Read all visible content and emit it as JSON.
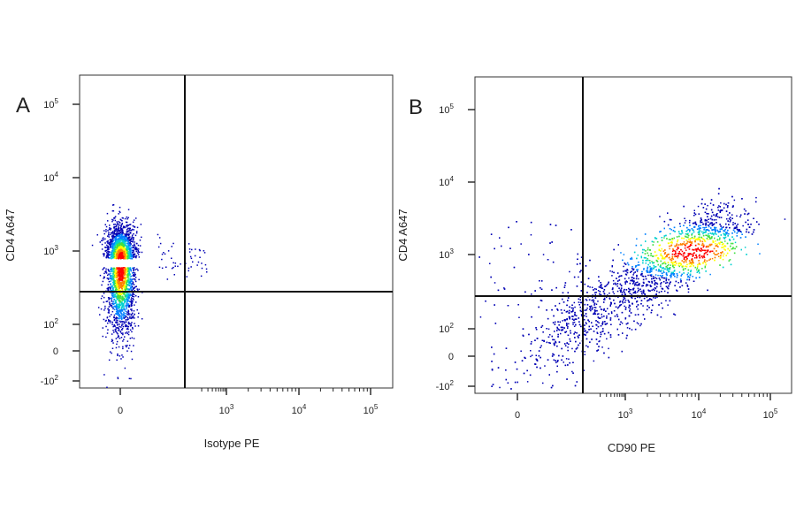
{
  "chart_data": [
    {
      "type": "scatter",
      "panel_label": "A",
      "xlabel": "Isotype PE",
      "ylabel": "CD4 A647",
      "x_scale": "biexponential",
      "y_scale": "biexponential",
      "xlim": [
        -200,
        200000
      ],
      "ylim": [
        -200,
        300000
      ],
      "x_ticks": [
        {
          "value": 0,
          "label": "0"
        },
        {
          "value": 1000,
          "label": "10",
          "exp": "3"
        },
        {
          "value": 10000,
          "label": "10",
          "exp": "4"
        },
        {
          "value": 100000,
          "label": "10",
          "exp": "5"
        }
      ],
      "y_ticks": [
        {
          "value": -100,
          "label": "-10",
          "exp": "2"
        },
        {
          "value": 0,
          "label": "0"
        },
        {
          "value": 100,
          "label": "10",
          "exp": "2"
        },
        {
          "value": 1000,
          "label": "10",
          "exp": "3"
        },
        {
          "value": 10000,
          "label": "10",
          "exp": "4"
        },
        {
          "value": 100000,
          "label": "10",
          "exp": "5"
        }
      ],
      "quadrant_gate": {
        "x": 300,
        "y": 250
      },
      "populations": [
        {
          "x": 0,
          "y": 800,
          "spread": "dense",
          "density": "high"
        }
      ],
      "colormap": [
        "#0000b4",
        "#0080ff",
        "#00d0d0",
        "#40e040",
        "#ffff00",
        "#ff8000",
        "#ff0000"
      ]
    },
    {
      "type": "scatter",
      "panel_label": "B",
      "xlabel": "CD90 PE",
      "ylabel": "CD4 A647",
      "x_scale": "biexponential",
      "y_scale": "biexponential",
      "xlim": [
        -200,
        200000
      ],
      "ylim": [
        -200,
        300000
      ],
      "x_ticks": [
        {
          "value": 0,
          "label": "0"
        },
        {
          "value": 1000,
          "label": "10",
          "exp": "3"
        },
        {
          "value": 10000,
          "label": "10",
          "exp": "4"
        },
        {
          "value": 100000,
          "label": "10",
          "exp": "5"
        }
      ],
      "y_ticks": [
        {
          "value": -100,
          "label": "-10",
          "exp": "2"
        },
        {
          "value": 0,
          "label": "0"
        },
        {
          "value": 100,
          "label": "10",
          "exp": "2"
        },
        {
          "value": 1000,
          "label": "10",
          "exp": "3"
        },
        {
          "value": 10000,
          "label": "10",
          "exp": "4"
        },
        {
          "value": 100000,
          "label": "10",
          "exp": "5"
        }
      ],
      "quadrant_gate": {
        "x": 300,
        "y": 250
      },
      "populations": [
        {
          "x": 8000,
          "y": 1100,
          "spread": "diagonal",
          "density": "high"
        }
      ],
      "colormap": [
        "#0000b4",
        "#0080ff",
        "#00d0d0",
        "#40e040",
        "#ffff00",
        "#ff8000",
        "#ff0000"
      ]
    }
  ]
}
